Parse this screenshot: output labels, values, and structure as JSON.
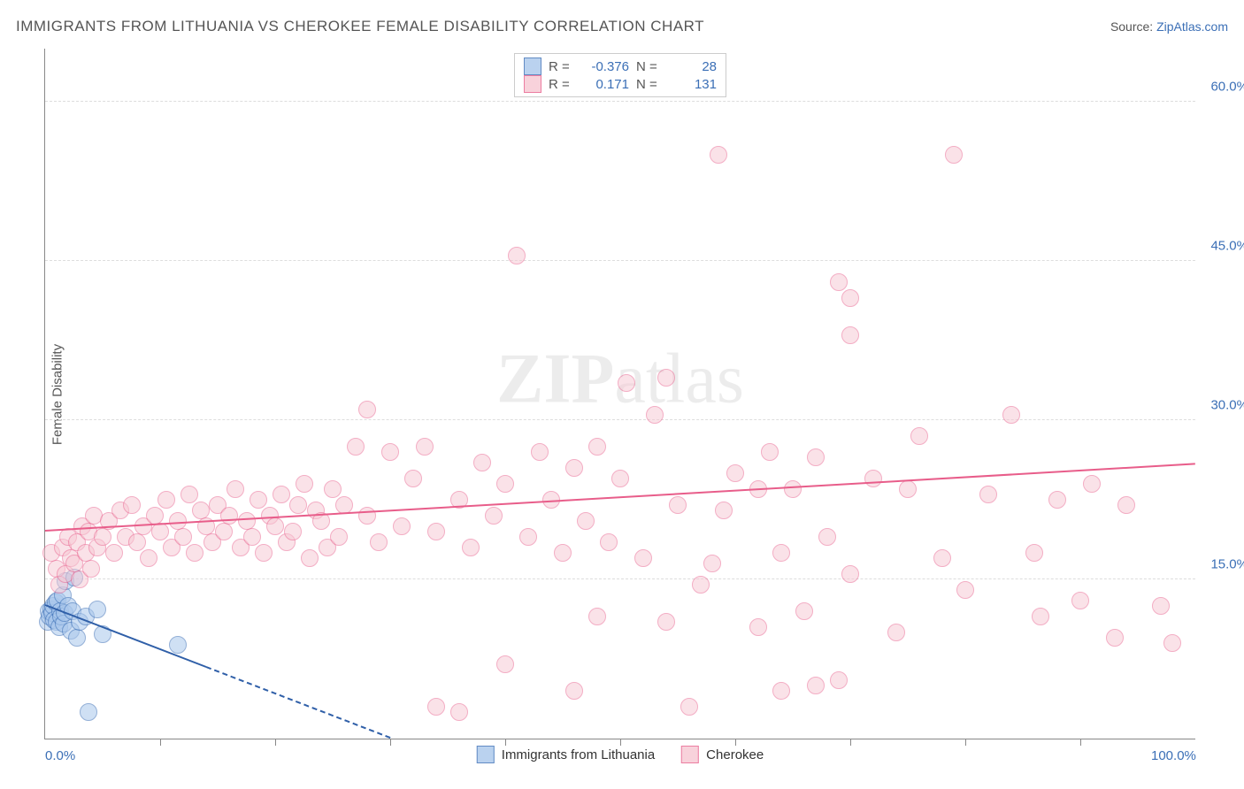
{
  "title": "IMMIGRANTS FROM LITHUANIA VS CHEROKEE FEMALE DISABILITY CORRELATION CHART",
  "source_prefix": "Source: ",
  "source_link": "ZipAtlas.com",
  "y_axis_label": "Female Disability",
  "watermark": "ZIPatlas",
  "chart": {
    "type": "scatter",
    "xlim": [
      0,
      100
    ],
    "ylim": [
      0,
      65
    ],
    "x_ticks_minor": [
      10,
      20,
      30,
      40,
      50,
      60,
      70,
      80,
      90
    ],
    "x_tick_labels": [
      {
        "v": 0,
        "label": "0.0%"
      },
      {
        "v": 100,
        "label": "100.0%"
      }
    ],
    "y_ticks": [
      {
        "v": 15,
        "label": "15.0%"
      },
      {
        "v": 30,
        "label": "30.0%"
      },
      {
        "v": 45,
        "label": "45.0%"
      },
      {
        "v": 60,
        "label": "60.0%"
      }
    ],
    "background_color": "#ffffff",
    "grid_color": "#dddddd",
    "marker_radius": 9,
    "marker_border_width": 1.2,
    "series": [
      {
        "name": "Immigrants from Lithuania",
        "fill": "#a9c7ec",
        "stroke": "#3b6fb6",
        "opacity": 0.55,
        "R": "-0.376",
        "N": "28",
        "trend": {
          "x1": 0,
          "y1": 12.5,
          "x2": 30,
          "y2": 0,
          "color": "#2f5fa8",
          "width": 2,
          "dash_from_x": 14
        },
        "points": [
          [
            0.2,
            11.0
          ],
          [
            0.3,
            12.0
          ],
          [
            0.4,
            11.5
          ],
          [
            0.5,
            12.2
          ],
          [
            0.6,
            11.8
          ],
          [
            0.7,
            12.5
          ],
          [
            0.8,
            11.2
          ],
          [
            0.9,
            12.8
          ],
          [
            1.0,
            11.0
          ],
          [
            1.1,
            13.0
          ],
          [
            1.2,
            10.5
          ],
          [
            1.3,
            12.0
          ],
          [
            1.4,
            11.5
          ],
          [
            1.5,
            13.5
          ],
          [
            1.6,
            10.8
          ],
          [
            1.7,
            11.8
          ],
          [
            1.8,
            14.8
          ],
          [
            2.0,
            12.5
          ],
          [
            2.2,
            10.2
          ],
          [
            2.4,
            12.0
          ],
          [
            2.5,
            15.2
          ],
          [
            2.8,
            9.5
          ],
          [
            3.0,
            11.0
          ],
          [
            3.5,
            11.5
          ],
          [
            4.5,
            12.2
          ],
          [
            5.0,
            9.8
          ],
          [
            11.5,
            8.8
          ],
          [
            3.8,
            2.5
          ]
        ]
      },
      {
        "name": "Cherokee",
        "fill": "#f7c7d3",
        "stroke": "#e85d8a",
        "opacity": 0.5,
        "R": "0.171",
        "N": "131",
        "trend": {
          "x1": 0,
          "y1": 19.5,
          "x2": 100,
          "y2": 25.8,
          "color": "#e85d8a",
          "width": 2
        },
        "points": [
          [
            0.5,
            17.5
          ],
          [
            1.0,
            16.0
          ],
          [
            1.2,
            14.5
          ],
          [
            1.5,
            18.0
          ],
          [
            1.8,
            15.5
          ],
          [
            2.0,
            19.0
          ],
          [
            2.2,
            17.0
          ],
          [
            2.5,
            16.5
          ],
          [
            2.8,
            18.5
          ],
          [
            3.0,
            15.0
          ],
          [
            3.2,
            20.0
          ],
          [
            3.5,
            17.5
          ],
          [
            3.8,
            19.5
          ],
          [
            4.0,
            16.0
          ],
          [
            4.2,
            21.0
          ],
          [
            4.5,
            18.0
          ],
          [
            5.0,
            19.0
          ],
          [
            5.5,
            20.5
          ],
          [
            6.0,
            17.5
          ],
          [
            6.5,
            21.5
          ],
          [
            7.0,
            19.0
          ],
          [
            7.5,
            22.0
          ],
          [
            8.0,
            18.5
          ],
          [
            8.5,
            20.0
          ],
          [
            9.0,
            17.0
          ],
          [
            9.5,
            21.0
          ],
          [
            10.0,
            19.5
          ],
          [
            10.5,
            22.5
          ],
          [
            11.0,
            18.0
          ],
          [
            11.5,
            20.5
          ],
          [
            12.0,
            19.0
          ],
          [
            12.5,
            23.0
          ],
          [
            13.0,
            17.5
          ],
          [
            13.5,
            21.5
          ],
          [
            14.0,
            20.0
          ],
          [
            14.5,
            18.5
          ],
          [
            15.0,
            22.0
          ],
          [
            15.5,
            19.5
          ],
          [
            16.0,
            21.0
          ],
          [
            16.5,
            23.5
          ],
          [
            17.0,
            18.0
          ],
          [
            17.5,
            20.5
          ],
          [
            18.0,
            19.0
          ],
          [
            18.5,
            22.5
          ],
          [
            19.0,
            17.5
          ],
          [
            19.5,
            21.0
          ],
          [
            20.0,
            20.0
          ],
          [
            20.5,
            23.0
          ],
          [
            21.0,
            18.5
          ],
          [
            21.5,
            19.5
          ],
          [
            22.0,
            22.0
          ],
          [
            22.5,
            24.0
          ],
          [
            23.0,
            17.0
          ],
          [
            23.5,
            21.5
          ],
          [
            24.0,
            20.5
          ],
          [
            24.5,
            18.0
          ],
          [
            25.0,
            23.5
          ],
          [
            25.5,
            19.0
          ],
          [
            26.0,
            22.0
          ],
          [
            27.0,
            27.5
          ],
          [
            28.0,
            21.0
          ],
          [
            29.0,
            18.5
          ],
          [
            30.0,
            27.0
          ],
          [
            31.0,
            20.0
          ],
          [
            32.0,
            24.5
          ],
          [
            33.0,
            27.5
          ],
          [
            34.0,
            19.5
          ],
          [
            28.0,
            31.0
          ],
          [
            36.0,
            22.5
          ],
          [
            37.0,
            18.0
          ],
          [
            38.0,
            26.0
          ],
          [
            39.0,
            21.0
          ],
          [
            40.0,
            24.0
          ],
          [
            41.0,
            45.5
          ],
          [
            42.0,
            19.0
          ],
          [
            43.0,
            27.0
          ],
          [
            44.0,
            22.5
          ],
          [
            45.0,
            17.5
          ],
          [
            46.0,
            25.5
          ],
          [
            47.0,
            20.5
          ],
          [
            48.0,
            27.5
          ],
          [
            49.0,
            18.5
          ],
          [
            50.0,
            24.5
          ],
          [
            50.5,
            33.5
          ],
          [
            52.0,
            17.0
          ],
          [
            53.0,
            30.5
          ],
          [
            54.0,
            11.0
          ],
          [
            55.0,
            22.0
          ],
          [
            54.0,
            34.0
          ],
          [
            57.0,
            14.5
          ],
          [
            58.0,
            16.5
          ],
          [
            59.0,
            21.5
          ],
          [
            60.0,
            25.0
          ],
          [
            58.5,
            55.0
          ],
          [
            62.0,
            10.5
          ],
          [
            63.0,
            27.0
          ],
          [
            64.0,
            17.5
          ],
          [
            65.0,
            23.5
          ],
          [
            66.0,
            12.0
          ],
          [
            67.0,
            26.5
          ],
          [
            68.0,
            19.0
          ],
          [
            69.0,
            43.0
          ],
          [
            70.0,
            15.5
          ],
          [
            70.0,
            38.0
          ],
          [
            72.0,
            24.5
          ],
          [
            70.0,
            41.5
          ],
          [
            74.0,
            10.0
          ],
          [
            75.0,
            23.5
          ],
          [
            76.0,
            28.5
          ],
          [
            69.0,
            5.5
          ],
          [
            78.0,
            17.0
          ],
          [
            67.0,
            5.0
          ],
          [
            80.0,
            14.0
          ],
          [
            64.0,
            4.5
          ],
          [
            82.0,
            23.0
          ],
          [
            56.0,
            3.0
          ],
          [
            84.0,
            30.5
          ],
          [
            79.0,
            55.0
          ],
          [
            86.0,
            17.5
          ],
          [
            48.0,
            11.5
          ],
          [
            88.0,
            22.5
          ],
          [
            36.0,
            2.5
          ],
          [
            90.0,
            13.0
          ],
          [
            91.0,
            24.0
          ],
          [
            46.0,
            4.5
          ],
          [
            93.0,
            9.5
          ],
          [
            94.0,
            22.0
          ],
          [
            40.0,
            7.0
          ],
          [
            86.5,
            11.5
          ],
          [
            97.0,
            12.5
          ],
          [
            98.0,
            9.0
          ],
          [
            62.0,
            23.5
          ],
          [
            34.0,
            3.0
          ]
        ]
      }
    ]
  },
  "legend_top": {
    "r_label": "R =",
    "n_label": "N ="
  }
}
